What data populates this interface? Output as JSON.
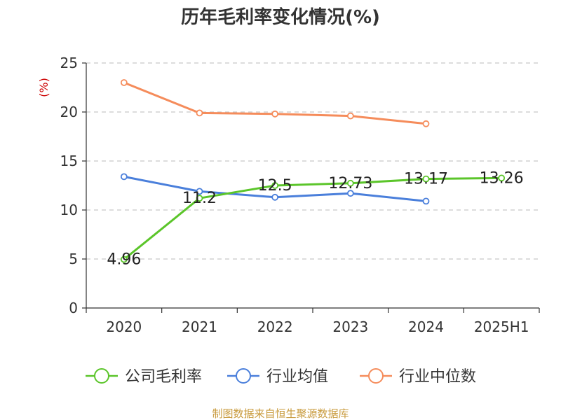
{
  "chart_data": {
    "type": "line",
    "title": "历年毛利率变化情况(%)",
    "ylabel": "(%)",
    "ylabel_color": "#cc0000",
    "categories": [
      "2020",
      "2021",
      "2022",
      "2023",
      "2024",
      "2025H1"
    ],
    "ylim": [
      0,
      25
    ],
    "yticks": [
      0,
      5,
      10,
      15,
      20,
      25
    ],
    "grid": true,
    "legend_position": "bottom",
    "series": [
      {
        "name": "公司毛利率",
        "color": "#5bc52a",
        "values": [
          4.96,
          11.2,
          12.5,
          12.73,
          13.17,
          13.26
        ],
        "labels": [
          "4.96",
          "11.2",
          "12.5",
          "12.73",
          "13.17",
          "13.26"
        ]
      },
      {
        "name": "行业均值",
        "color": "#4a7fdb",
        "values": [
          13.4,
          11.9,
          11.3,
          11.7,
          10.9,
          null
        ]
      },
      {
        "name": "行业中位数",
        "color": "#f58c5b",
        "values": [
          23.0,
          19.9,
          19.8,
          19.6,
          18.8,
          null
        ]
      }
    ]
  },
  "source": {
    "text": "制图数据来自恒生聚源数据库",
    "color": "#c89a3c"
  }
}
